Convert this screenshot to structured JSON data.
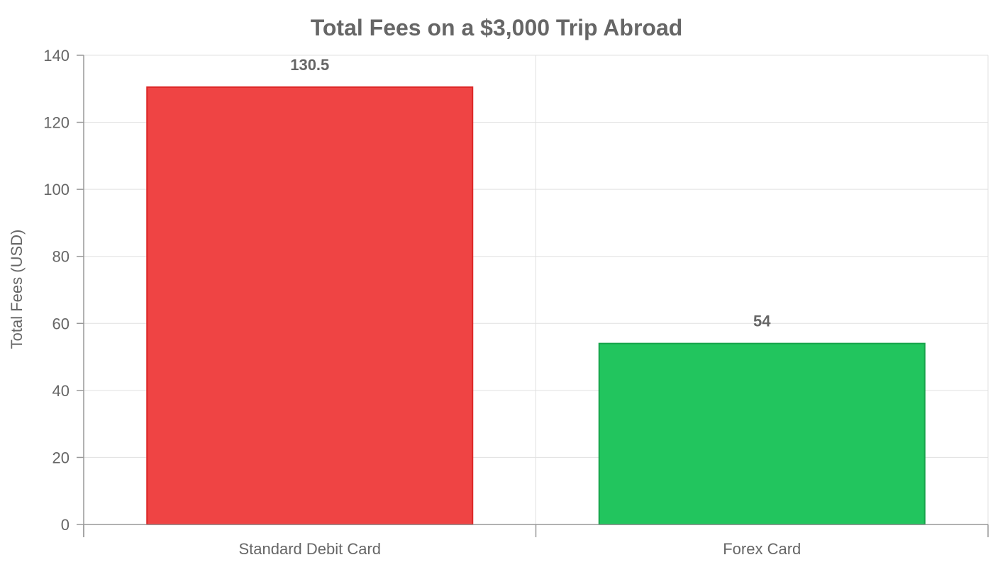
{
  "chart_data": {
    "type": "bar",
    "title": "Total Fees on a $3,000 Trip Abroad",
    "xlabel": "",
    "ylabel": "Total Fees (USD)",
    "categories": [
      "Standard Debit Card",
      "Forex Card"
    ],
    "values": [
      130.5,
      54
    ],
    "data_labels": [
      "130.5",
      "54"
    ],
    "colors": [
      "#ef4444",
      "#22c55e"
    ],
    "border_colors": [
      "#dc2626",
      "#16a34a"
    ],
    "ylim": [
      0,
      140
    ],
    "yticks": [
      0,
      20,
      40,
      60,
      80,
      100,
      120,
      140
    ],
    "grid": true,
    "legend": "none"
  }
}
